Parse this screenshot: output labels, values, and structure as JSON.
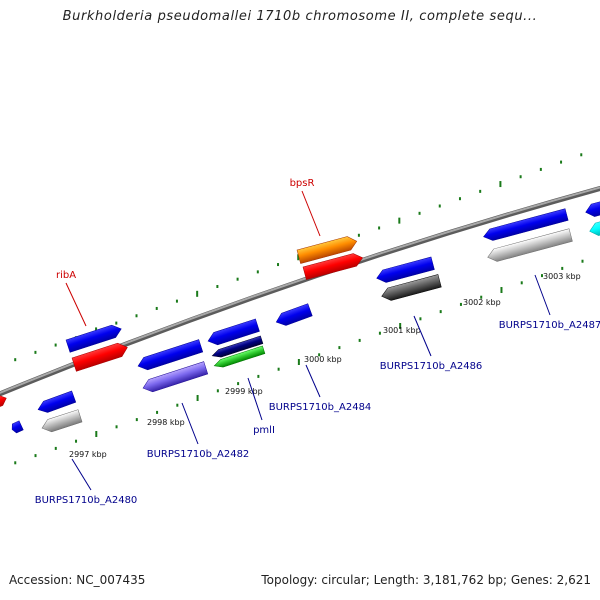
{
  "title": "Burkholderia pseudomallei 1710b chromosome II, complete sequ...",
  "footer": {
    "accession": "Accession: NC_007435",
    "summary": "Topology: circular; Length: 3,181,762 bp; Genes: 2,621"
  },
  "colors": {
    "backbone": "#808080",
    "tick": "#1a7a1a",
    "red_label": "#cc0000",
    "blue_label": "#00008b",
    "kbp_label": "#111111"
  },
  "kbp_labels": [
    "2997 kbp",
    "2998 kbp",
    "2999 kbp",
    "3000 kbp",
    "3001 kbp",
    "3002 kbp",
    "3003 kbp"
  ],
  "genes": [
    {
      "name": "",
      "strand": "+",
      "color": "#ff0000",
      "label": ""
    },
    {
      "name": "",
      "strand": "-",
      "color": "#0000ee",
      "label": ""
    },
    {
      "name": "",
      "strand": "-",
      "color": "#0000ee",
      "label": ""
    },
    {
      "name": "",
      "strand": "-",
      "color": "#c0c0c0",
      "label": ""
    },
    {
      "name": "",
      "strand": "+",
      "color": "#0000ee",
      "label": "ribA"
    },
    {
      "name": "",
      "strand": "+",
      "color": "#ff0000",
      "label": ""
    },
    {
      "name": "",
      "strand": "-",
      "color": "#0000ee",
      "label": ""
    },
    {
      "name": "",
      "strand": "-",
      "color": "#7b68ee",
      "label": ""
    },
    {
      "name": "",
      "strand": "-",
      "color": "#0000ee",
      "label": ""
    },
    {
      "name": "",
      "strand": "-",
      "color": "#000080",
      "label": ""
    },
    {
      "name": "",
      "strand": "-",
      "color": "#32cd32",
      "label": ""
    },
    {
      "name": "",
      "strand": "-",
      "color": "#0000ee",
      "label": ""
    },
    {
      "name": "",
      "strand": "+",
      "color": "#ff8c00",
      "label": "bpsR"
    },
    {
      "name": "",
      "strand": "+",
      "color": "#ff0000",
      "label": ""
    },
    {
      "name": "",
      "strand": "-",
      "color": "#0000ee",
      "label": ""
    },
    {
      "name": "",
      "strand": "-",
      "color": "#606060",
      "label": ""
    },
    {
      "name": "",
      "strand": "-",
      "color": "#0000ee",
      "label": ""
    },
    {
      "name": "",
      "strand": "-",
      "color": "#c8c8c8",
      "label": ""
    },
    {
      "name": "",
      "strand": "-",
      "color": "#0000ee",
      "label": ""
    },
    {
      "name": "",
      "strand": "-",
      "color": "#00ffff",
      "label": ""
    }
  ],
  "gene_labels": [
    {
      "text": "ribA",
      "color": "red"
    },
    {
      "text": "bpsR",
      "color": "red"
    },
    {
      "text": "BURPS1710b_A2480",
      "color": "blue"
    },
    {
      "text": "BURPS1710b_A2482",
      "color": "blue"
    },
    {
      "text": "pmlI",
      "color": "blue"
    },
    {
      "text": "BURPS1710b_A2484",
      "color": "blue"
    },
    {
      "text": "BURPS1710b_A2486",
      "color": "blue"
    },
    {
      "text": "BURPS1710b_A2487",
      "color": "blue"
    }
  ]
}
